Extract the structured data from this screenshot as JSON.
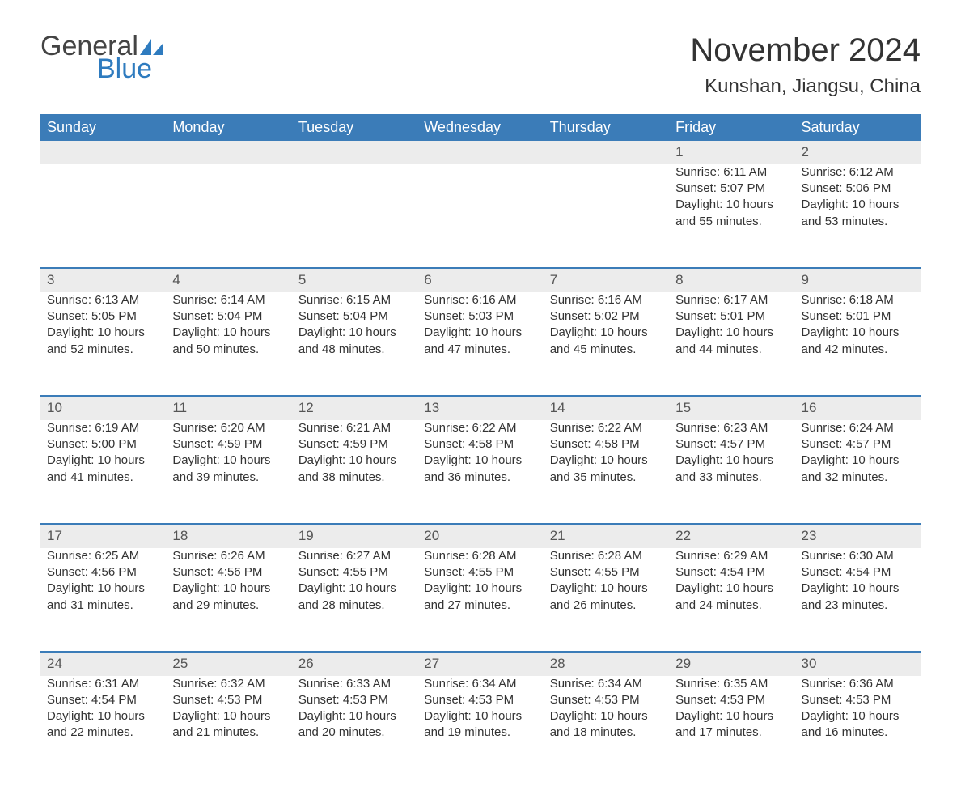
{
  "brand": {
    "line1": "General",
    "line2": "Blue",
    "icon_color": "#2e7bbf",
    "text_color": "#444"
  },
  "title": "November 2024",
  "location": "Kunshan, Jiangsu, China",
  "header_bg": "#3b7cb8",
  "header_fg": "#ffffff",
  "daynum_bg": "#ececec",
  "divider_color": "#3b7cb8",
  "text_color": "#333333",
  "font_family": "Arial",
  "day_headers": [
    "Sunday",
    "Monday",
    "Tuesday",
    "Wednesday",
    "Thursday",
    "Friday",
    "Saturday"
  ],
  "weeks": [
    [
      null,
      null,
      null,
      null,
      null,
      {
        "n": "1",
        "sunrise": "Sunrise: 6:11 AM",
        "sunset": "Sunset: 5:07 PM",
        "d1": "Daylight: 10 hours",
        "d2": "and 55 minutes."
      },
      {
        "n": "2",
        "sunrise": "Sunrise: 6:12 AM",
        "sunset": "Sunset: 5:06 PM",
        "d1": "Daylight: 10 hours",
        "d2": "and 53 minutes."
      }
    ],
    [
      {
        "n": "3",
        "sunrise": "Sunrise: 6:13 AM",
        "sunset": "Sunset: 5:05 PM",
        "d1": "Daylight: 10 hours",
        "d2": "and 52 minutes."
      },
      {
        "n": "4",
        "sunrise": "Sunrise: 6:14 AM",
        "sunset": "Sunset: 5:04 PM",
        "d1": "Daylight: 10 hours",
        "d2": "and 50 minutes."
      },
      {
        "n": "5",
        "sunrise": "Sunrise: 6:15 AM",
        "sunset": "Sunset: 5:04 PM",
        "d1": "Daylight: 10 hours",
        "d2": "and 48 minutes."
      },
      {
        "n": "6",
        "sunrise": "Sunrise: 6:16 AM",
        "sunset": "Sunset: 5:03 PM",
        "d1": "Daylight: 10 hours",
        "d2": "and 47 minutes."
      },
      {
        "n": "7",
        "sunrise": "Sunrise: 6:16 AM",
        "sunset": "Sunset: 5:02 PM",
        "d1": "Daylight: 10 hours",
        "d2": "and 45 minutes."
      },
      {
        "n": "8",
        "sunrise": "Sunrise: 6:17 AM",
        "sunset": "Sunset: 5:01 PM",
        "d1": "Daylight: 10 hours",
        "d2": "and 44 minutes."
      },
      {
        "n": "9",
        "sunrise": "Sunrise: 6:18 AM",
        "sunset": "Sunset: 5:01 PM",
        "d1": "Daylight: 10 hours",
        "d2": "and 42 minutes."
      }
    ],
    [
      {
        "n": "10",
        "sunrise": "Sunrise: 6:19 AM",
        "sunset": "Sunset: 5:00 PM",
        "d1": "Daylight: 10 hours",
        "d2": "and 41 minutes."
      },
      {
        "n": "11",
        "sunrise": "Sunrise: 6:20 AM",
        "sunset": "Sunset: 4:59 PM",
        "d1": "Daylight: 10 hours",
        "d2": "and 39 minutes."
      },
      {
        "n": "12",
        "sunrise": "Sunrise: 6:21 AM",
        "sunset": "Sunset: 4:59 PM",
        "d1": "Daylight: 10 hours",
        "d2": "and 38 minutes."
      },
      {
        "n": "13",
        "sunrise": "Sunrise: 6:22 AM",
        "sunset": "Sunset: 4:58 PM",
        "d1": "Daylight: 10 hours",
        "d2": "and 36 minutes."
      },
      {
        "n": "14",
        "sunrise": "Sunrise: 6:22 AM",
        "sunset": "Sunset: 4:58 PM",
        "d1": "Daylight: 10 hours",
        "d2": "and 35 minutes."
      },
      {
        "n": "15",
        "sunrise": "Sunrise: 6:23 AM",
        "sunset": "Sunset: 4:57 PM",
        "d1": "Daylight: 10 hours",
        "d2": "and 33 minutes."
      },
      {
        "n": "16",
        "sunrise": "Sunrise: 6:24 AM",
        "sunset": "Sunset: 4:57 PM",
        "d1": "Daylight: 10 hours",
        "d2": "and 32 minutes."
      }
    ],
    [
      {
        "n": "17",
        "sunrise": "Sunrise: 6:25 AM",
        "sunset": "Sunset: 4:56 PM",
        "d1": "Daylight: 10 hours",
        "d2": "and 31 minutes."
      },
      {
        "n": "18",
        "sunrise": "Sunrise: 6:26 AM",
        "sunset": "Sunset: 4:56 PM",
        "d1": "Daylight: 10 hours",
        "d2": "and 29 minutes."
      },
      {
        "n": "19",
        "sunrise": "Sunrise: 6:27 AM",
        "sunset": "Sunset: 4:55 PM",
        "d1": "Daylight: 10 hours",
        "d2": "and 28 minutes."
      },
      {
        "n": "20",
        "sunrise": "Sunrise: 6:28 AM",
        "sunset": "Sunset: 4:55 PM",
        "d1": "Daylight: 10 hours",
        "d2": "and 27 minutes."
      },
      {
        "n": "21",
        "sunrise": "Sunrise: 6:28 AM",
        "sunset": "Sunset: 4:55 PM",
        "d1": "Daylight: 10 hours",
        "d2": "and 26 minutes."
      },
      {
        "n": "22",
        "sunrise": "Sunrise: 6:29 AM",
        "sunset": "Sunset: 4:54 PM",
        "d1": "Daylight: 10 hours",
        "d2": "and 24 minutes."
      },
      {
        "n": "23",
        "sunrise": "Sunrise: 6:30 AM",
        "sunset": "Sunset: 4:54 PM",
        "d1": "Daylight: 10 hours",
        "d2": "and 23 minutes."
      }
    ],
    [
      {
        "n": "24",
        "sunrise": "Sunrise: 6:31 AM",
        "sunset": "Sunset: 4:54 PM",
        "d1": "Daylight: 10 hours",
        "d2": "and 22 minutes."
      },
      {
        "n": "25",
        "sunrise": "Sunrise: 6:32 AM",
        "sunset": "Sunset: 4:53 PM",
        "d1": "Daylight: 10 hours",
        "d2": "and 21 minutes."
      },
      {
        "n": "26",
        "sunrise": "Sunrise: 6:33 AM",
        "sunset": "Sunset: 4:53 PM",
        "d1": "Daylight: 10 hours",
        "d2": "and 20 minutes."
      },
      {
        "n": "27",
        "sunrise": "Sunrise: 6:34 AM",
        "sunset": "Sunset: 4:53 PM",
        "d1": "Daylight: 10 hours",
        "d2": "and 19 minutes."
      },
      {
        "n": "28",
        "sunrise": "Sunrise: 6:34 AM",
        "sunset": "Sunset: 4:53 PM",
        "d1": "Daylight: 10 hours",
        "d2": "and 18 minutes."
      },
      {
        "n": "29",
        "sunrise": "Sunrise: 6:35 AM",
        "sunset": "Sunset: 4:53 PM",
        "d1": "Daylight: 10 hours",
        "d2": "and 17 minutes."
      },
      {
        "n": "30",
        "sunrise": "Sunrise: 6:36 AM",
        "sunset": "Sunset: 4:53 PM",
        "d1": "Daylight: 10 hours",
        "d2": "and 16 minutes."
      }
    ]
  ]
}
